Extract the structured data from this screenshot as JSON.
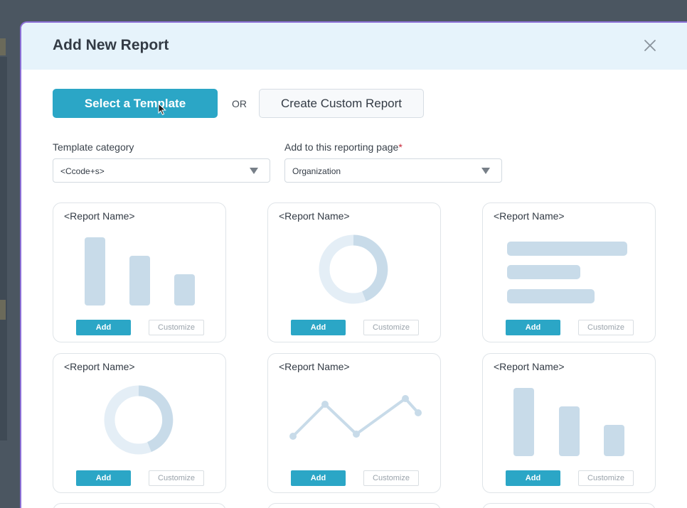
{
  "modal": {
    "title": "Add New Report",
    "close_icon": "close-icon"
  },
  "actions": {
    "select_template_label": "Select a Template",
    "or_label": "OR",
    "create_custom_label": "Create Custom Report"
  },
  "fields": {
    "template_category": {
      "label": "Template category",
      "value": "<Ccode+s>"
    },
    "reporting_page": {
      "label": "Add to this reporting page",
      "required_mark": "*",
      "value": "Organization"
    }
  },
  "colors": {
    "accent": "#2ba6c6",
    "chart_fill": "#c8dbe9",
    "chart_light": "#e4eef6",
    "header_bg": "#e6f3fb"
  },
  "cards": [
    {
      "title": "<Report Name>",
      "chart": "bar-vertical",
      "add_label": "Add",
      "customize_label": "Customize"
    },
    {
      "title": "<Report Name>",
      "chart": "donut",
      "add_label": "Add",
      "customize_label": "Customize"
    },
    {
      "title": "<Report Name>",
      "chart": "bar-horizontal",
      "add_label": "Add",
      "customize_label": "Customize"
    },
    {
      "title": "<Report Name>",
      "chart": "donut",
      "add_label": "Add",
      "customize_label": "Customize"
    },
    {
      "title": "<Report Name>",
      "chart": "line",
      "add_label": "Add",
      "customize_label": "Customize"
    },
    {
      "title": "<Report Name>",
      "chart": "bar-vertical",
      "add_label": "Add",
      "customize_label": "Customize"
    }
  ]
}
